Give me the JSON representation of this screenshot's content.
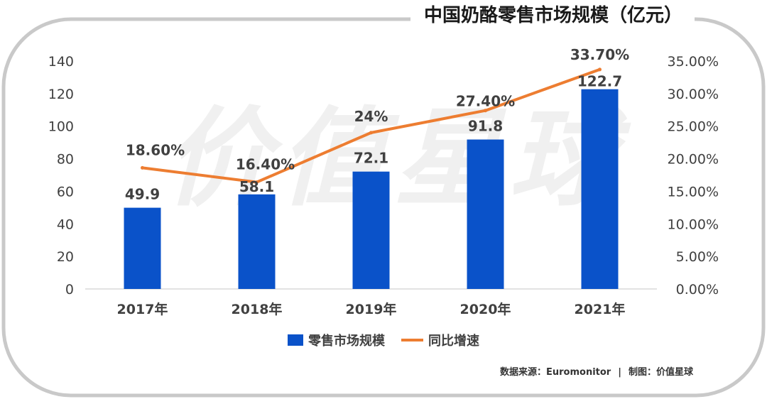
{
  "title": "中国奶酪零售市场规模（亿元）",
  "watermark": "价值星球",
  "footer": {
    "source": "数据来源：Euromonitor",
    "separator": "|",
    "credit": "制图：价值星球"
  },
  "colors": {
    "bar": "#0a52c9",
    "line": "#ed7d31",
    "frame": "#c9c9c9",
    "text": "#404040"
  },
  "chart_data": {
    "type": "bar",
    "categories": [
      "2017年",
      "2018年",
      "2019年",
      "2020年",
      "2021年"
    ],
    "series": [
      {
        "name": "零售市场规模",
        "type": "bar",
        "axis": "left",
        "values": [
          49.9,
          58.1,
          72.1,
          91.8,
          122.7
        ],
        "labels": [
          "49.9",
          "58.1",
          "72.1",
          "91.8",
          "122.7"
        ]
      },
      {
        "name": "同比增速",
        "type": "line",
        "axis": "right",
        "values": [
          18.6,
          16.4,
          24.0,
          27.4,
          33.7
        ],
        "labels": [
          "18.60%",
          "16.40%",
          "24%",
          "27.40%",
          "33.70%"
        ]
      }
    ],
    "y_left": {
      "min": 0,
      "max": 140,
      "ticks": [
        "0",
        "20",
        "40",
        "60",
        "80",
        "100",
        "120",
        "140"
      ]
    },
    "y_right": {
      "min": 0,
      "max": 35,
      "ticks": [
        "0.00%",
        "5.00%",
        "10.00%",
        "15.00%",
        "20.00%",
        "25.00%",
        "30.00%",
        "35.00%"
      ]
    },
    "grid": false,
    "legend_position": "bottom"
  }
}
